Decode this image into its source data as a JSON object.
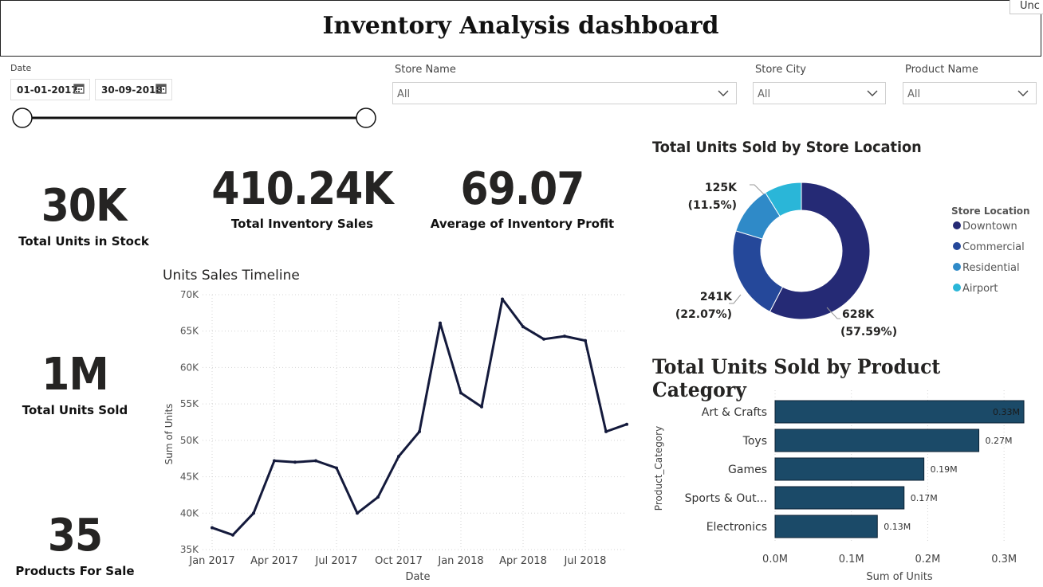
{
  "header": {
    "title": "Inventory Analysis dashboard",
    "corner_tab": "Unc"
  },
  "filters": {
    "date": {
      "label": "Date",
      "start": "01-01-2017",
      "end": "30-09-2018",
      "range_start_fraction": 0.0,
      "range_end_fraction": 1.0
    },
    "store_name": {
      "label": "Store Name",
      "value": "All"
    },
    "store_city": {
      "label": "Store City",
      "value": "All"
    },
    "product_name": {
      "label": "Product Name",
      "value": "All"
    }
  },
  "kpis": {
    "units_in_stock": {
      "value": "30K",
      "label": "Total Units in Stock"
    },
    "inventory_sales": {
      "value": "410.24K",
      "label": "Total Inventory Sales"
    },
    "inventory_profit": {
      "value": "69.07",
      "label": "Average of Inventory Profit"
    },
    "units_sold": {
      "value": "1M",
      "label": "Total Units Sold"
    },
    "products_for_sale": {
      "value": "35",
      "label": "Products For Sale"
    }
  },
  "colors": {
    "line": "#141a3c",
    "bar": "#1b4a68",
    "downtown": "#252a75",
    "commercial": "#25489a",
    "residential": "#2f8ac8",
    "airport": "#2ab6d8"
  },
  "chart_data": [
    {
      "type": "line",
      "title": "Units Sales Timeline",
      "xlabel": "Date",
      "ylabel": "Sum of Units",
      "ylim": [
        35000,
        70000
      ],
      "yticks": [
        35000,
        40000,
        45000,
        50000,
        55000,
        60000,
        65000,
        70000
      ],
      "ytick_labels": [
        "35K",
        "40K",
        "45K",
        "50K",
        "55K",
        "60K",
        "65K",
        "70K"
      ],
      "xtick_labels": [
        "Jan 2017",
        "Apr 2017",
        "Jul 2017",
        "Oct 2017",
        "Jan 2018",
        "Apr 2018",
        "Jul 2018"
      ],
      "x": [
        "2017-01",
        "2017-02",
        "2017-03",
        "2017-04",
        "2017-05",
        "2017-06",
        "2017-07",
        "2017-08",
        "2017-09",
        "2017-10",
        "2017-11",
        "2017-12",
        "2018-01",
        "2018-02",
        "2018-03",
        "2018-04",
        "2018-05",
        "2018-06",
        "2018-07",
        "2018-08",
        "2018-09"
      ],
      "values": [
        38000,
        37000,
        40000,
        47200,
        47000,
        47200,
        46200,
        40000,
        42200,
        47800,
        51200,
        66100,
        56500,
        54600,
        69400,
        65600,
        63900,
        64300,
        63700,
        51200,
        52200
      ]
    },
    {
      "type": "pie",
      "title": "Total Units Sold by Store Location",
      "legend_title": "Store Location",
      "categories": [
        "Downtown",
        "Commercial",
        "Residential",
        "Airport"
      ],
      "values": [
        628000,
        241000,
        125000,
        96000
      ],
      "percentages": [
        57.59,
        22.07,
        11.5,
        8.84
      ],
      "data_labels": [
        {
          "value": "628K",
          "pct": "(57.59%)"
        },
        {
          "value": "241K",
          "pct": "(22.07%)"
        },
        {
          "value": "125K",
          "pct": "(11.5%)"
        }
      ]
    },
    {
      "type": "bar",
      "orientation": "horizontal",
      "title": "Total Units Sold by Product Category",
      "xlabel": "Sum of Units",
      "ylabel": "Product_Category",
      "xlim": [
        0,
        0.35
      ],
      "xticks": [
        0,
        0.1,
        0.2,
        0.3
      ],
      "xtick_labels": [
        "0.0M",
        "0.1M",
        "0.2M",
        "0.3M"
      ],
      "categories": [
        "Art & Crafts",
        "Toys",
        "Games",
        "Sports & Out...",
        "Electronics"
      ],
      "values": [
        0.326,
        0.267,
        0.195,
        0.169,
        0.134
      ],
      "value_labels": [
        "0.33M",
        "0.27M",
        "0.19M",
        "0.17M",
        "0.13M"
      ]
    }
  ]
}
